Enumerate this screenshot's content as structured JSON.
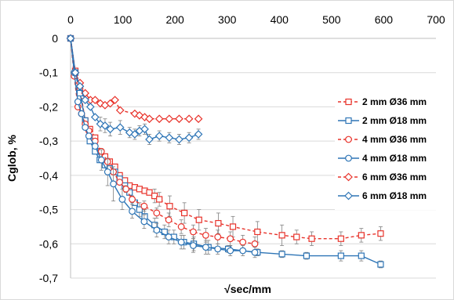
{
  "chart_data": {
    "type": "line",
    "title": "",
    "xlabel": "√sec/mm",
    "ylabel": "Cglob, %",
    "xlim": [
      0,
      700
    ],
    "ylim": [
      -0.7,
      0
    ],
    "x_axis_position": "top",
    "x_ticks": [
      "0",
      "100",
      "200",
      "300",
      "400",
      "500",
      "600",
      "700"
    ],
    "y_ticks": [
      "0",
      "-0,1",
      "-0,2",
      "-0,3",
      "-0,4",
      "-0,5",
      "-0,6",
      "-0,7"
    ],
    "grid": "horizontal",
    "legend_position": "right",
    "colors": {
      "red": "#e8322a",
      "blue": "#2e75b6",
      "errorbar": "#808080",
      "grid": "#d9d9d9"
    },
    "series": [
      {
        "name": "2 mm Ø36 mm",
        "color": "#e8322a",
        "dash": true,
        "marker": "square",
        "x": [
          0,
          9,
          18,
          28,
          37,
          47,
          56,
          66,
          75,
          85,
          94,
          104,
          113,
          123,
          132,
          142,
          151,
          161,
          170,
          190,
          218,
          246,
          283,
          311,
          358,
          405,
          433,
          462,
          518,
          557,
          594
        ],
        "y": [
          0,
          -0.095,
          -0.145,
          -0.24,
          -0.265,
          -0.29,
          -0.33,
          -0.345,
          -0.36,
          -0.375,
          -0.4,
          -0.415,
          -0.43,
          -0.435,
          -0.44,
          -0.445,
          -0.45,
          -0.46,
          -0.47,
          -0.49,
          -0.51,
          -0.53,
          -0.54,
          -0.55,
          -0.565,
          -0.575,
          -0.58,
          -0.585,
          -0.585,
          -0.575,
          -0.57
        ],
        "yerr": [
          0,
          0,
          0,
          0,
          0,
          0,
          0,
          0,
          0,
          0,
          0,
          0,
          0,
          0,
          0,
          0,
          0,
          0.02,
          0.02,
          0.03,
          0.03,
          0.03,
          0.03,
          0.03,
          0.03,
          0.03,
          0.02,
          0.02,
          0.02,
          0.02,
          0.02
        ]
      },
      {
        "name": "2 mm Ø18 mm",
        "color": "#2e75b6",
        "dash": false,
        "marker": "square",
        "x": [
          0,
          9,
          18,
          28,
          37,
          47,
          56,
          66,
          75,
          85,
          94,
          104,
          113,
          123,
          132,
          142,
          161,
          180,
          198,
          217,
          236,
          264,
          302,
          358,
          405,
          452,
          518,
          557,
          594
        ],
        "y": [
          0,
          -0.1,
          -0.16,
          -0.24,
          -0.3,
          -0.33,
          -0.355,
          -0.37,
          -0.38,
          -0.39,
          -0.41,
          -0.43,
          -0.45,
          -0.48,
          -0.5,
          -0.52,
          -0.545,
          -0.565,
          -0.58,
          -0.595,
          -0.6,
          -0.61,
          -0.615,
          -0.625,
          -0.63,
          -0.635,
          -0.635,
          -0.635,
          -0.66
        ],
        "yerr": [
          0,
          0,
          0,
          0,
          0,
          0,
          0,
          0,
          0,
          0,
          0,
          0,
          0,
          0,
          0.02,
          0.02,
          0.02,
          0.02,
          0.02,
          0.02,
          0.02,
          0.02,
          0.01,
          0.01,
          0.01,
          0.01,
          0.015,
          0.015,
          0.01
        ]
      },
      {
        "name": "4 mm Ø36 mm",
        "color": "#e8322a",
        "dash": true,
        "marker": "circle",
        "x": [
          0,
          7,
          14,
          21,
          28,
          35,
          47,
          59,
          71,
          82,
          94,
          106,
          118,
          141,
          165,
          188,
          212,
          235,
          259,
          282,
          306,
          330,
          353
        ],
        "y": [
          0,
          -0.11,
          -0.2,
          -0.22,
          -0.25,
          -0.27,
          -0.3,
          -0.33,
          -0.36,
          -0.39,
          -0.42,
          -0.44,
          -0.47,
          -0.49,
          -0.51,
          -0.53,
          -0.55,
          -0.565,
          -0.575,
          -0.58,
          -0.585,
          -0.595,
          -0.6
        ],
        "yerr": [
          0,
          0,
          0,
          0,
          0,
          0,
          0,
          0,
          0,
          0,
          0,
          0.01,
          0.01,
          0.015,
          0.015,
          0.02,
          0.02,
          0.02,
          0.02,
          0.02,
          0.02,
          0.02,
          0.02
        ]
      },
      {
        "name": "4 mm Ø18 mm",
        "color": "#2e75b6",
        "dash": false,
        "marker": "circle",
        "x": [
          0,
          7,
          14,
          21,
          28,
          35,
          47,
          59,
          71,
          82,
          99,
          118,
          141,
          165,
          188,
          212,
          235,
          259,
          282,
          306,
          330,
          353
        ],
        "y": [
          0,
          -0.1,
          -0.185,
          -0.22,
          -0.26,
          -0.285,
          -0.315,
          -0.355,
          -0.39,
          -0.425,
          -0.47,
          -0.505,
          -0.535,
          -0.56,
          -0.58,
          -0.595,
          -0.605,
          -0.61,
          -0.615,
          -0.62,
          -0.62,
          -0.625
        ],
        "yerr": [
          0,
          0,
          0,
          0,
          0,
          0,
          0,
          0.03,
          0.04,
          0.05,
          0.03,
          0.02,
          0.02,
          0.02,
          0.02,
          0.02,
          0.02,
          0.02,
          0.015,
          0.015,
          0.015,
          0.015
        ]
      },
      {
        "name": "6 mm Ø36 mm",
        "color": "#e8322a",
        "dash": true,
        "marker": "diamond",
        "x": [
          0,
          9,
          18,
          28,
          38,
          47,
          57,
          66,
          76,
          85,
          95,
          123,
          132,
          142,
          151,
          170,
          189,
          208,
          227,
          245
        ],
        "y": [
          0,
          -0.1,
          -0.13,
          -0.16,
          -0.18,
          -0.18,
          -0.19,
          -0.195,
          -0.19,
          -0.18,
          -0.21,
          -0.22,
          -0.225,
          -0.23,
          -0.235,
          -0.235,
          -0.235,
          -0.235,
          -0.235,
          -0.235
        ],
        "yerr": [
          0,
          0,
          0,
          0,
          0,
          0,
          0,
          0,
          0,
          0,
          0,
          0,
          0,
          0,
          0,
          0,
          0,
          0,
          0,
          0
        ]
      },
      {
        "name": "6 mm Ø18 mm",
        "color": "#2e75b6",
        "dash": false,
        "marker": "diamond",
        "x": [
          0,
          9,
          18,
          28,
          38,
          47,
          57,
          66,
          76,
          95,
          113,
          123,
          132,
          142,
          151,
          170,
          189,
          208,
          227,
          245
        ],
        "y": [
          0,
          -0.1,
          -0.14,
          -0.18,
          -0.2,
          -0.23,
          -0.25,
          -0.255,
          -0.265,
          -0.26,
          -0.275,
          -0.28,
          -0.27,
          -0.265,
          -0.295,
          -0.285,
          -0.29,
          -0.295,
          -0.29,
          -0.28
        ],
        "yerr": [
          0,
          0,
          0,
          0,
          0,
          0,
          0.02,
          0.02,
          0.02,
          0.02,
          0.015,
          0.015,
          0.015,
          0.015,
          0.015,
          0.015,
          0.015,
          0.015,
          0.015,
          0.015
        ]
      }
    ]
  }
}
